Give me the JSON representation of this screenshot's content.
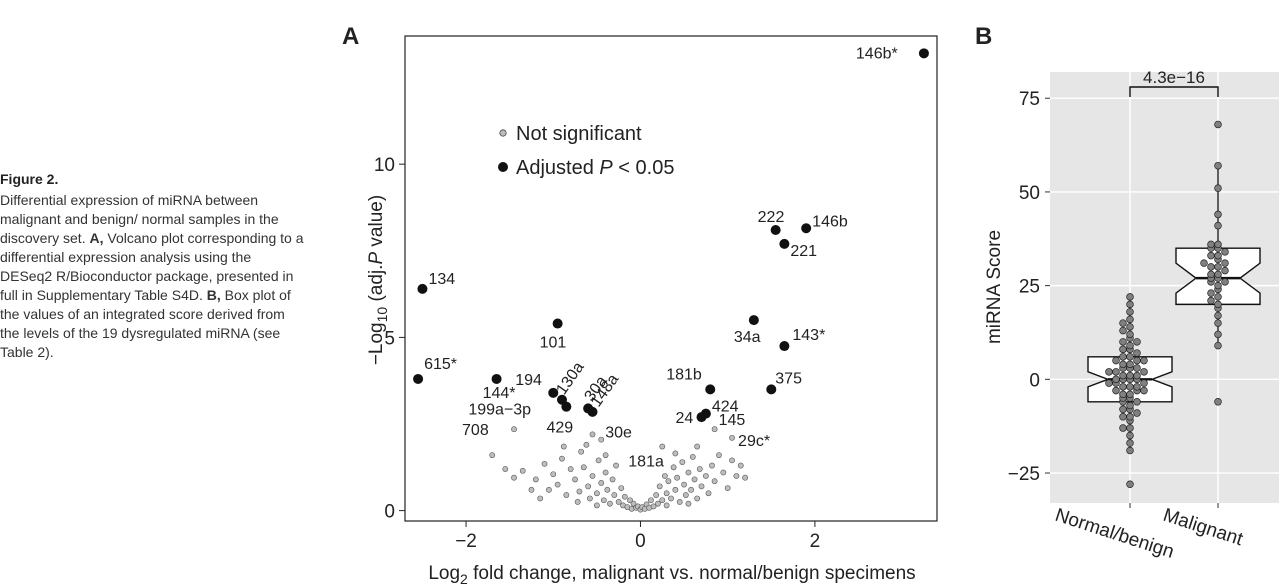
{
  "caption": {
    "title": "Figure 2.",
    "text_1": "Differential expression of miRNA between malignant and benign/ normal samples in the discovery set. ",
    "label_a": "A,",
    "text_2": " Volcano plot corresponding to a differential expression analysis using the DESeq2 R/Bioconductor package, presented in full in Supplementary Table S4D. ",
    "label_b": "B,",
    "text_3": " Box plot of the values of an integrated score derived from the levels of the 19 dysregulated miRNA (see Table 2)."
  },
  "chart_data": [
    {
      "panel": "A",
      "type": "scatter",
      "xlabel": "Log2 fold change, malignant vs. normal/benign specimens",
      "ylabel": "−Log10 (adj.P value)",
      "xlim": [
        -2.7,
        3.4
      ],
      "ylim": [
        -0.3,
        13.7
      ],
      "xticks": [
        -2,
        0,
        2
      ],
      "yticks": [
        0,
        5,
        10
      ],
      "xtick_labels": [
        "−2",
        "0",
        "2"
      ],
      "ytick_labels": [
        "0",
        "5",
        "10"
      ],
      "legend": {
        "position": "top-left",
        "not_significant": "Not significant",
        "significant_prefix": "Adjusted ",
        "significant_italic": "P",
        "significant_suffix": " < 0.05"
      },
      "significant": [
        {
          "label": "146b*",
          "x": 3.25,
          "y": 13.2
        },
        {
          "label": "222",
          "x": 1.55,
          "y": 8.1
        },
        {
          "label": "146b",
          "x": 1.9,
          "y": 8.15
        },
        {
          "label": "221",
          "x": 1.65,
          "y": 7.7
        },
        {
          "label": "134",
          "x": -2.5,
          "y": 6.4
        },
        {
          "label": "101",
          "x": -0.95,
          "y": 5.4
        },
        {
          "label": "34a",
          "x": 1.3,
          "y": 5.5
        },
        {
          "label": "143*",
          "x": 1.65,
          "y": 4.75
        },
        {
          "label": "615*",
          "x": -2.55,
          "y": 3.8
        },
        {
          "label": "144*",
          "x": -1.65,
          "y": 3.8
        },
        {
          "label": "194",
          "x": -1.0,
          "y": 3.4
        },
        {
          "label": "130a",
          "x": -0.9,
          "y": 3.2
        },
        {
          "label": "30a",
          "x": -0.6,
          "y": 2.95
        },
        {
          "label": "148a",
          "x": -0.55,
          "y": 2.85
        },
        {
          "label": "199a−3p",
          "x": -0.85,
          "y": 3.0
        },
        {
          "label": "181b",
          "x": 0.8,
          "y": 3.5
        },
        {
          "label": "375",
          "x": 1.5,
          "y": 3.5
        },
        {
          "label": "424",
          "x": 0.75,
          "y": 2.8
        },
        {
          "label": "24",
          "x": 0.7,
          "y": 2.7
        }
      ],
      "not_significant_labeled": [
        {
          "label": "708",
          "x": -1.45,
          "y": 2.35
        },
        {
          "label": "429",
          "x": -0.55,
          "y": 2.2
        },
        {
          "label": "30e",
          "x": -0.45,
          "y": 2.05
        },
        {
          "label": "181a",
          "x": 0.25,
          "y": 1.85
        },
        {
          "label": "145",
          "x": 0.85,
          "y": 2.35
        },
        {
          "label": "29c*",
          "x": 1.05,
          "y": 2.1
        }
      ],
      "not_significant_points": [
        [
          -1.7,
          1.6
        ],
        [
          -1.55,
          1.2
        ],
        [
          -1.45,
          0.95
        ],
        [
          -1.35,
          1.15
        ],
        [
          -1.2,
          0.9
        ],
        [
          -1.1,
          1.35
        ],
        [
          -1.05,
          0.6
        ],
        [
          -1.0,
          1.05
        ],
        [
          -0.95,
          0.75
        ],
        [
          -0.9,
          1.5
        ],
        [
          -0.85,
          0.45
        ],
        [
          -0.8,
          1.2
        ],
        [
          -0.75,
          0.9
        ],
        [
          -0.7,
          0.55
        ],
        [
          -0.68,
          1.7
        ],
        [
          -0.65,
          1.25
        ],
        [
          -0.6,
          0.7
        ],
        [
          -0.58,
          0.35
        ],
        [
          -0.55,
          1.0
        ],
        [
          -0.5,
          0.5
        ],
        [
          -0.48,
          1.45
        ],
        [
          -0.45,
          0.8
        ],
        [
          -0.42,
          0.3
        ],
        [
          -0.4,
          1.1
        ],
        [
          -0.38,
          0.6
        ],
        [
          -0.35,
          0.2
        ],
        [
          -0.32,
          0.9
        ],
        [
          -0.3,
          0.45
        ],
        [
          -0.28,
          1.3
        ],
        [
          -0.25,
          0.25
        ],
        [
          -0.22,
          0.65
        ],
        [
          -0.2,
          0.15
        ],
        [
          -0.18,
          0.4
        ],
        [
          -0.15,
          0.1
        ],
        [
          -0.12,
          0.3
        ],
        [
          -0.1,
          0.05
        ],
        [
          -0.08,
          0.2
        ],
        [
          -0.05,
          0.08
        ],
        [
          -0.03,
          0.12
        ],
        [
          0.0,
          0.03
        ],
        [
          0.02,
          0.1
        ],
        [
          0.05,
          0.05
        ],
        [
          0.07,
          0.18
        ],
        [
          0.1,
          0.08
        ],
        [
          0.12,
          0.3
        ],
        [
          0.15,
          0.12
        ],
        [
          0.18,
          0.45
        ],
        [
          0.2,
          0.2
        ],
        [
          0.22,
          0.7
        ],
        [
          0.25,
          0.3
        ],
        [
          0.28,
          1.0
        ],
        [
          0.3,
          0.5
        ],
        [
          0.32,
          0.85
        ],
        [
          0.35,
          0.35
        ],
        [
          0.38,
          1.25
        ],
        [
          0.4,
          0.6
        ],
        [
          0.42,
          0.95
        ],
        [
          0.45,
          0.25
        ],
        [
          0.48,
          1.4
        ],
        [
          0.5,
          0.75
        ],
        [
          0.52,
          0.45
        ],
        [
          0.55,
          1.1
        ],
        [
          0.58,
          0.6
        ],
        [
          0.6,
          1.55
        ],
        [
          0.62,
          0.9
        ],
        [
          0.65,
          0.35
        ],
        [
          0.68,
          1.2
        ],
        [
          0.7,
          0.7
        ],
        [
          0.75,
          1.0
        ],
        [
          0.78,
          0.5
        ],
        [
          0.82,
          1.3
        ],
        [
          0.85,
          0.85
        ],
        [
          0.9,
          1.6
        ],
        [
          0.95,
          1.1
        ],
        [
          1.0,
          0.65
        ],
        [
          1.05,
          1.45
        ],
        [
          1.1,
          1.0
        ],
        [
          1.15,
          1.3
        ],
        [
          1.2,
          0.95
        ],
        [
          -1.25,
          0.6
        ],
        [
          -0.88,
          1.85
        ],
        [
          -0.62,
          1.9
        ],
        [
          -0.4,
          1.6
        ],
        [
          0.4,
          1.65
        ],
        [
          0.65,
          1.85
        ],
        [
          -0.72,
          0.25
        ],
        [
          -0.5,
          0.15
        ],
        [
          0.55,
          0.2
        ],
        [
          0.3,
          0.15
        ],
        [
          -1.15,
          0.35
        ]
      ]
    },
    {
      "panel": "B",
      "type": "box",
      "ylabel": "miRNA Score",
      "ylim": [
        -33,
        82
      ],
      "yticks": [
        -25,
        0,
        25,
        50,
        75
      ],
      "ytick_labels": [
        "−25",
        "0",
        "25",
        "50",
        "75"
      ],
      "categories": [
        "Normal/benign",
        "Malignant"
      ],
      "significance": {
        "label": "4.3e−16"
      },
      "boxes": [
        {
          "name": "Normal/benign",
          "q1": -6,
          "median": 0,
          "q3": 6,
          "notch_low": -2,
          "notch_high": 2,
          "whisker_low": -19,
          "whisker_high": 22
        },
        {
          "name": "Malignant",
          "q1": 20,
          "median": 27,
          "q3": 35,
          "notch_low": 23,
          "notch_high": 31,
          "whisker_low": 9,
          "whisker_high": 57
        }
      ],
      "points": [
        [
          -28,
          -19,
          -17,
          -15,
          -13,
          -13,
          -11,
          -10,
          -10,
          -9,
          -8,
          -8,
          -7,
          -6,
          -6,
          -5,
          -5,
          -4,
          -4,
          -3,
          -3,
          -3,
          -2,
          -2,
          -2,
          -1,
          -1,
          -1,
          0,
          0,
          0,
          0,
          1,
          1,
          1,
          2,
          2,
          2,
          3,
          3,
          3,
          4,
          4,
          5,
          5,
          5,
          6,
          6,
          7,
          8,
          8,
          9,
          10,
          10,
          11,
          12,
          13,
          14,
          15,
          16,
          18,
          20,
          22
        ],
        [
          -6,
          9,
          12,
          15,
          17,
          19,
          20,
          21,
          22,
          23,
          24,
          25,
          26,
          26,
          27,
          27,
          28,
          28,
          29,
          30,
          30,
          31,
          31,
          32,
          33,
          33,
          34,
          35,
          35,
          36,
          36,
          41,
          44,
          51,
          57,
          68
        ]
      ]
    }
  ],
  "panel_labels": {
    "a": "A",
    "b": "B"
  }
}
